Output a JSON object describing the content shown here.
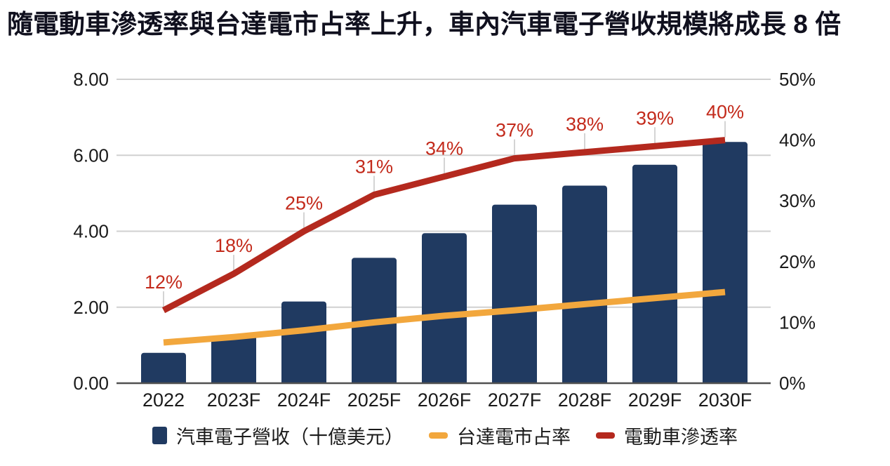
{
  "title": "隨電動車滲透率與台達電市占率上升，車內汽車電子營收規模將成長 8 倍",
  "colors": {
    "background": "#ffffff",
    "title_text": "#10101e",
    "axis_text": "#1a1a1a",
    "bar": "#203a61",
    "market_share_line": "#f2a73d",
    "ev_line": "#b4291e",
    "ev_label": "#c32a1b",
    "grid": "#d0d0d0",
    "leader": "#d4d4d4",
    "axis_line": "#515151"
  },
  "chart_data": {
    "type": "combo",
    "categories": [
      "2022",
      "2023F",
      "2024F",
      "2025F",
      "2026F",
      "2027F",
      "2028F",
      "2029F",
      "2030F"
    ],
    "series": [
      {
        "name": "汽車電子營收（十億美元）",
        "type": "bar",
        "axis": "left",
        "values": [
          0.8,
          1.25,
          2.15,
          3.3,
          3.95,
          4.7,
          5.2,
          5.75,
          6.35
        ]
      },
      {
        "name": "台達電市占率",
        "type": "line",
        "axis": "right",
        "values": [
          6.7,
          7.6,
          8.7,
          10,
          11.1,
          12,
          13,
          14,
          15
        ]
      },
      {
        "name": "電動車滲透率",
        "type": "line",
        "axis": "right",
        "values": [
          12,
          18,
          25,
          31,
          34,
          37,
          38,
          39,
          40
        ],
        "point_labels": [
          "12%",
          "18%",
          "25%",
          "31%",
          "34%",
          "37%",
          "38%",
          "39%",
          "40%"
        ]
      }
    ],
    "left_axis": {
      "min": 0,
      "max": 8,
      "tick_values": [
        0,
        2,
        4,
        6,
        8
      ],
      "tick_labels": [
        "0.00",
        "2.00",
        "4.00",
        "6.00",
        "8.00"
      ]
    },
    "right_axis": {
      "min": 0,
      "max": 50,
      "tick_values": [
        0,
        10,
        20,
        30,
        40,
        50
      ],
      "tick_labels": [
        "0%",
        "10%",
        "20%",
        "30%",
        "40%",
        "50%"
      ]
    },
    "grid": true,
    "legend_position": "bottom"
  }
}
